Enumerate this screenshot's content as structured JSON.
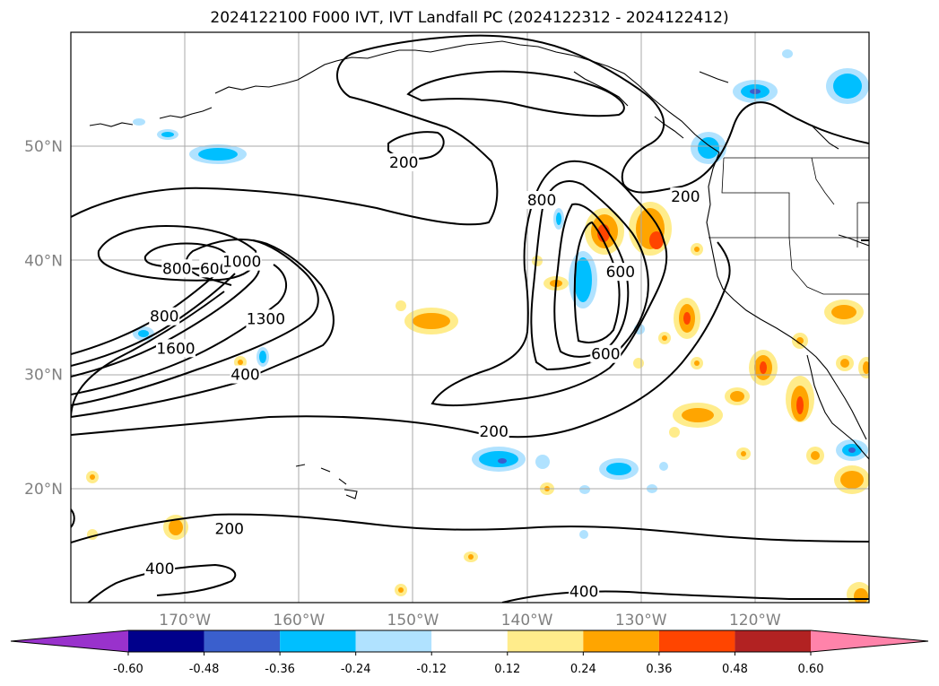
{
  "title": "2024122100 F000 IVT, IVT Landfall PC (2024122312 - 2024122412)",
  "map": {
    "projection": "PlateCarree",
    "lon_range": [
      -180,
      -110
    ],
    "lat_range": [
      10,
      60
    ],
    "lon_ticks": [
      {
        "value": -170,
        "label": "170°W"
      },
      {
        "value": -160,
        "label": "160°W"
      },
      {
        "value": -150,
        "label": "150°W"
      },
      {
        "value": -140,
        "label": "140°W"
      },
      {
        "value": -130,
        "label": "130°W"
      },
      {
        "value": -120,
        "label": "120°W"
      }
    ],
    "lat_ticks": [
      {
        "value": 20,
        "label": "20°N"
      },
      {
        "value": 30,
        "label": "30°N"
      },
      {
        "value": 40,
        "label": "40°N"
      },
      {
        "value": 50,
        "label": "50°N"
      }
    ],
    "grid": true,
    "tick_label_color": "#808080"
  },
  "contour_labels": [
    {
      "text": "200",
      "lon": -150.8,
      "lat": 48.6
    },
    {
      "text": "800",
      "lon": -138.7,
      "lat": 45.3
    },
    {
      "text": "200",
      "lon": -126.1,
      "lat": 45.6
    },
    {
      "text": "800",
      "lon": -170.7,
      "lat": 39.3
    },
    {
      "text": "600",
      "lon": -167.4,
      "lat": 39.3
    },
    {
      "text": "1000",
      "lon": -165.0,
      "lat": 39.9
    },
    {
      "text": "600",
      "lon": -131.8,
      "lat": 39.0
    },
    {
      "text": "800",
      "lon": -171.8,
      "lat": 35.1
    },
    {
      "text": "1300",
      "lon": -162.9,
      "lat": 34.9
    },
    {
      "text": "1600",
      "lon": -170.8,
      "lat": 32.3
    },
    {
      "text": "600",
      "lon": -133.1,
      "lat": 31.8
    },
    {
      "text": "400",
      "lon": -164.7,
      "lat": 30.0
    },
    {
      "text": "200",
      "lon": -142.9,
      "lat": 25.0
    },
    {
      "text": "200",
      "lon": -166.1,
      "lat": 16.5
    },
    {
      "text": "400",
      "lon": -172.2,
      "lat": 13.0
    },
    {
      "text": "400",
      "lon": -135.0,
      "lat": 11.0
    }
  ],
  "colorbar": {
    "boundaries": [
      "-0.60",
      "-0.48",
      "-0.36",
      "-0.24",
      "-0.12",
      "0.12",
      "0.24",
      "0.36",
      "0.48",
      "0.60"
    ],
    "colors": [
      "#9932cc",
      "#00008b",
      "#3a5fcd",
      "#00bfff",
      "#b0e2ff",
      "#ffffff",
      "#ffec8b",
      "#ffa500",
      "#ff4500",
      "#b22222",
      "#ff83aa"
    ],
    "extend": "both"
  }
}
